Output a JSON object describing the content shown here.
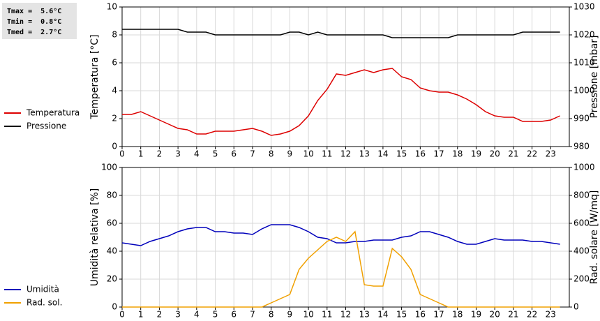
{
  "stats": [
    "Tmax =  5.6°C",
    "Tmin =  0.8°C",
    "Tmed =  2.7°C"
  ],
  "chart_data": [
    {
      "type": "line",
      "ylabel": "Temperatura [°C]",
      "y2label": "Pressione [mbar]",
      "x": [
        0,
        0.5,
        1,
        1.5,
        2,
        2.5,
        3,
        3.5,
        4,
        4.5,
        5,
        5.5,
        6,
        6.5,
        7,
        7.5,
        8,
        8.5,
        9,
        9.5,
        10,
        10.5,
        11,
        11.5,
        12,
        12.5,
        13,
        13.5,
        14,
        14.5,
        15,
        15.5,
        16,
        16.5,
        17,
        17.5,
        18,
        18.5,
        19,
        19.5,
        20,
        20.5,
        21,
        21.5,
        22,
        22.5,
        23,
        23.5
      ],
      "xlim": [
        0,
        24
      ],
      "xticks": [
        0,
        1,
        2,
        3,
        4,
        5,
        6,
        7,
        8,
        9,
        10,
        11,
        12,
        13,
        14,
        15,
        16,
        17,
        18,
        19,
        20,
        21,
        22,
        23
      ],
      "ylim": [
        0,
        10
      ],
      "yticks": [
        0,
        2,
        4,
        6,
        8,
        10
      ],
      "y2lim": [
        980,
        1030
      ],
      "y2ticks": [
        980,
        990,
        1000,
        1010,
        1020,
        1030
      ],
      "grid": true,
      "series": [
        {
          "name": "Temperatura",
          "color": "#dd0000",
          "values": [
            2.3,
            2.3,
            2.5,
            2.2,
            1.9,
            1.6,
            1.3,
            1.2,
            0.9,
            0.9,
            1.1,
            1.1,
            1.1,
            1.2,
            1.3,
            1.1,
            0.8,
            0.9,
            1.1,
            1.5,
            2.2,
            3.3,
            4.1,
            5.2,
            5.1,
            5.3,
            5.5,
            5.3,
            5.5,
            5.6,
            5.0,
            4.8,
            4.2,
            4.0,
            3.9,
            3.9,
            3.7,
            3.4,
            3.0,
            2.5,
            2.2,
            2.1,
            2.1,
            1.8,
            1.8,
            1.8,
            1.9,
            2.2
          ]
        },
        {
          "name": "Pressione",
          "color": "#000000",
          "axis": "y2",
          "values": [
            1022,
            1022,
            1022,
            1022,
            1022,
            1022,
            1022,
            1021,
            1021,
            1021,
            1020,
            1020,
            1020,
            1020,
            1020,
            1020,
            1020,
            1020,
            1021,
            1021,
            1020,
            1021,
            1020,
            1020,
            1020,
            1020,
            1020,
            1020,
            1020,
            1019,
            1019,
            1019,
            1019,
            1019,
            1019,
            1019,
            1020,
            1020,
            1020,
            1020,
            1020,
            1020,
            1020,
            1021,
            1021,
            1021,
            1021,
            1021
          ]
        }
      ]
    },
    {
      "type": "line",
      "ylabel": "Umidità relativa [%]",
      "y2label": "Rad. solare [W/mq]",
      "x": [
        0,
        0.5,
        1,
        1.5,
        2,
        2.5,
        3,
        3.5,
        4,
        4.5,
        5,
        5.5,
        6,
        6.5,
        7,
        7.5,
        8,
        8.5,
        9,
        9.5,
        10,
        10.5,
        11,
        11.5,
        12,
        12.5,
        13,
        13.5,
        14,
        14.5,
        15,
        15.5,
        16,
        16.5,
        17,
        17.5,
        18,
        18.5,
        19,
        19.5,
        20,
        20.5,
        21,
        21.5,
        22,
        22.5,
        23,
        23.5
      ],
      "xlim": [
        0,
        24
      ],
      "xticks": [
        0,
        1,
        2,
        3,
        4,
        5,
        6,
        7,
        8,
        9,
        10,
        11,
        12,
        13,
        14,
        15,
        16,
        17,
        18,
        19,
        20,
        21,
        22,
        23
      ],
      "ylim": [
        0,
        100
      ],
      "yticks": [
        0,
        20,
        40,
        60,
        80,
        100
      ],
      "y2lim": [
        0,
        1000
      ],
      "y2ticks": [
        0,
        200,
        400,
        600,
        800,
        1000
      ],
      "grid": true,
      "series": [
        {
          "name": "Umidità",
          "color": "#0000bb",
          "values": [
            46,
            45,
            44,
            47,
            49,
            51,
            54,
            56,
            57,
            57,
            54,
            54,
            53,
            53,
            52,
            56,
            59,
            59,
            59,
            57,
            54,
            50,
            49,
            46,
            46,
            47,
            47,
            48,
            48,
            48,
            50,
            51,
            54,
            54,
            52,
            50,
            47,
            45,
            45,
            47,
            49,
            48,
            48,
            48,
            47,
            47,
            46,
            45
          ]
        },
        {
          "name": "Rad. sol.",
          "color": "#f0a000",
          "axis": "y2",
          "values": [
            0,
            0,
            0,
            0,
            0,
            0,
            0,
            0,
            0,
            0,
            0,
            0,
            0,
            0,
            0,
            0,
            30,
            60,
            90,
            270,
            350,
            410,
            470,
            500,
            470,
            540,
            160,
            150,
            150,
            420,
            360,
            270,
            90,
            60,
            30,
            0,
            0,
            0,
            0,
            0,
            0,
            0,
            0,
            0,
            0,
            0,
            0,
            0
          ]
        }
      ]
    }
  ]
}
